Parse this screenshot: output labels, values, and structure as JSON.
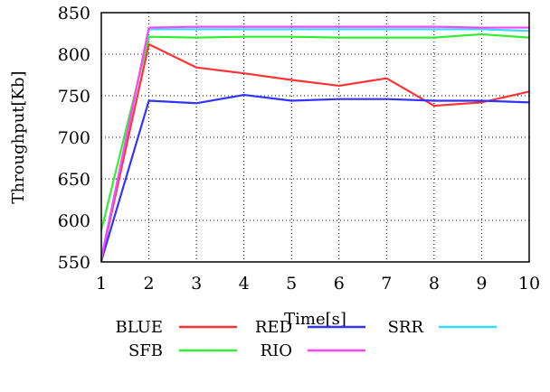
{
  "chart_data": {
    "type": "line",
    "title": "",
    "xlabel": "Time[s]",
    "ylabel": "Throughput[Kb]",
    "xlim": [
      1,
      10
    ],
    "ylim": [
      550,
      850
    ],
    "xticks": [
      1,
      2,
      3,
      4,
      5,
      6,
      7,
      8,
      9,
      10
    ],
    "yticks": [
      550,
      600,
      650,
      700,
      750,
      800,
      850
    ],
    "grid": true,
    "legend_position": "bottom",
    "x": [
      1,
      2,
      3,
      4,
      5,
      6,
      7,
      8,
      9,
      10
    ],
    "series": [
      {
        "name": "BLUE",
        "color": "#ff3333",
        "values": [
          553,
          812,
          784,
          777,
          769,
          762,
          771,
          738,
          742,
          755
        ]
      },
      {
        "name": "RED",
        "color": "#3333ff",
        "values": [
          551,
          744,
          741,
          751,
          744,
          746,
          746,
          744,
          744,
          742
        ]
      },
      {
        "name": "SRR",
        "color": "#33ddff",
        "values": [
          555,
          830,
          830,
          830,
          830,
          830,
          830,
          830,
          830,
          828
        ]
      },
      {
        "name": "SFB",
        "color": "#33ee33",
        "values": [
          588,
          821,
          820,
          821,
          821,
          820,
          820,
          820,
          824,
          820
        ]
      },
      {
        "name": "RIO",
        "color": "#ff44ff",
        "values": [
          553,
          832,
          833,
          833,
          833,
          833,
          833,
          833,
          832,
          832
        ]
      }
    ]
  }
}
